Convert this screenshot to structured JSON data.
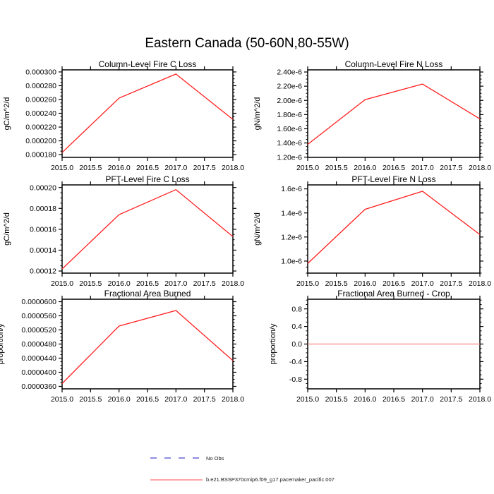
{
  "page_title": "Eastern Canada (50-60N,80-55W)",
  "colors": {
    "axis": "#000000",
    "series_red": "#ff1f1f",
    "flat_line_red": "#ff8585",
    "no_obs_purple": "#6a66d8",
    "legend_red": "#ff7070"
  },
  "legend": {
    "items": [
      {
        "label": "No Obs",
        "color": "#6a66d8",
        "style": "dashed"
      },
      {
        "label": "b.e21.BSSP370cmip6.f09_g17.pacemaker_pacific.007",
        "color": "#ff7070",
        "style": "solid"
      }
    ]
  },
  "chart_data": [
    {
      "type": "line",
      "title": "Column-Level Fire C Loss",
      "ylabel": "gC/m^2/d",
      "xlabel": "",
      "x": [
        2015.0,
        2016.0,
        2017.0,
        2018.0
      ],
      "values": [
        0.000183,
        0.000262,
        0.000297,
        0.000231
      ],
      "xlim": [
        2015.0,
        2018.0
      ],
      "xticks": [
        2015.0,
        2015.5,
        2016.0,
        2016.5,
        2017.0,
        2017.5,
        2018.0
      ],
      "xtick_labels": [
        "2015.0",
        "2015.5",
        "2016.0",
        "2016.5",
        "2017.0",
        "2017.5",
        "2018.0"
      ],
      "ylim": [
        0.000176,
        0.000303
      ],
      "yticks": [
        0.00018,
        0.0002,
        0.00022,
        0.00024,
        0.00026,
        0.00028,
        0.0003
      ],
      "ytick_labels": [
        "0.000180",
        "0.000200",
        "0.000220",
        "0.000240",
        "0.000260",
        "0.000280",
        "0.000300"
      ],
      "line_color": "#ff1f1f",
      "grid": false
    },
    {
      "type": "line",
      "title": "Column-Level Fire N Loss",
      "ylabel": "gN/m^2/d",
      "xlabel": "",
      "x": [
        2015.0,
        2016.0,
        2017.0,
        2018.0
      ],
      "values": [
        1.38e-06,
        2.01e-06,
        2.23e-06,
        1.74e-06
      ],
      "xlim": [
        2015.0,
        2018.0
      ],
      "xticks": [
        2015.0,
        2015.5,
        2016.0,
        2016.5,
        2017.0,
        2017.5,
        2018.0
      ],
      "xtick_labels": [
        "2015.0",
        "2015.5",
        "2016.0",
        "2016.5",
        "2017.0",
        "2017.5",
        "2018.0"
      ],
      "ylim": [
        1.197e-06,
        2.43e-06
      ],
      "yticks": [
        1.2e-06,
        1.4e-06,
        1.6e-06,
        1.8e-06,
        2e-06,
        2.2e-06,
        2.4e-06
      ],
      "ytick_labels": [
        "1.20e-6",
        "1.40e-6",
        "1.60e-6",
        "1.80e-6",
        "2.00e-6",
        "2.20e-6",
        "2.40e-6"
      ],
      "line_color": "#ff1f1f",
      "grid": false
    },
    {
      "type": "line",
      "title": "PFT-Level Fire C Loss",
      "ylabel": "gC/m^2/d",
      "xlabel": "",
      "x": [
        2015.0,
        2016.0,
        2017.0,
        2018.0
      ],
      "values": [
        0.000122,
        0.000174,
        0.000198,
        0.000153
      ],
      "xlim": [
        2015.0,
        2018.0
      ],
      "xticks": [
        2015.0,
        2015.5,
        2016.0,
        2016.5,
        2017.0,
        2017.5,
        2018.0
      ],
      "xtick_labels": [
        "2015.0",
        "2015.5",
        "2016.0",
        "2016.5",
        "2017.0",
        "2017.5",
        "2018.0"
      ],
      "ylim": [
        0.000118,
        0.0002025
      ],
      "yticks": [
        0.00012,
        0.00014,
        0.00016,
        0.00018,
        0.0002
      ],
      "ytick_labels": [
        "0.00012",
        "0.00014",
        "0.00016",
        "0.00018",
        "0.00020"
      ],
      "line_color": "#ff1f1f",
      "grid": false
    },
    {
      "type": "line",
      "title": "PFT-Level Fire N Loss",
      "ylabel": "gN/m^2/d",
      "xlabel": "",
      "x": [
        2015.0,
        2016.0,
        2017.0,
        2018.0
      ],
      "values": [
        9.8e-07,
        1.43e-06,
        1.58e-06,
        1.22e-06
      ],
      "xlim": [
        2015.0,
        2018.0
      ],
      "xticks": [
        2015.0,
        2015.5,
        2016.0,
        2016.5,
        2017.0,
        2017.5,
        2018.0
      ],
      "xtick_labels": [
        "2015.0",
        "2015.5",
        "2016.0",
        "2016.5",
        "2017.0",
        "2017.5",
        "2018.0"
      ],
      "ylim": [
        9e-07,
        1.633e-06
      ],
      "yticks": [
        1e-06,
        1.2e-06,
        1.4e-06,
        1.6e-06
      ],
      "ytick_labels": [
        "1.0e-6",
        "1.2e-6",
        "1.4e-6",
        "1.6e-6"
      ],
      "line_color": "#ff1f1f",
      "grid": false
    },
    {
      "type": "line",
      "title": "Fractional Area Burned",
      "ylabel": "proportion/y",
      "xlabel": "",
      "x": [
        2015.0,
        2016.0,
        2017.0,
        2018.0
      ],
      "values": [
        3.68e-05,
        5.31e-05,
        5.75e-05,
        4.33e-05
      ],
      "xlim": [
        2015.0,
        2018.0
      ],
      "xticks": [
        2015.0,
        2015.5,
        2016.0,
        2016.5,
        2017.0,
        2017.5,
        2018.0
      ],
      "xtick_labels": [
        "2015.0",
        "2015.5",
        "2016.0",
        "2016.5",
        "2017.0",
        "2017.5",
        "2018.0"
      ],
      "ylim": [
        3.53e-05,
        6.07e-05
      ],
      "yticks": [
        3.6e-05,
        4e-05,
        4.4e-05,
        4.8e-05,
        5.2e-05,
        5.6e-05,
        6e-05
      ],
      "ytick_labels": [
        "0.0000360",
        "0.0000400",
        "0.0000440",
        "0.0000480",
        "0.0000520",
        "0.0000560",
        "0.0000600"
      ],
      "line_color": "#ff1f1f",
      "grid": false
    },
    {
      "type": "line",
      "title": "Fractional Area Burned - Crop",
      "ylabel": "proportion/y",
      "xlabel": "",
      "x": [
        2015.0,
        2016.0,
        2017.0,
        2018.0
      ],
      "values": [
        0.0,
        0.0,
        0.0,
        0.0
      ],
      "xlim": [
        2015.0,
        2018.0
      ],
      "xticks": [
        2015.0,
        2015.5,
        2016.0,
        2016.5,
        2017.0,
        2017.5,
        2018.0
      ],
      "xtick_labels": [
        "2015.0",
        "2015.5",
        "2016.0",
        "2016.5",
        "2017.0",
        "2017.5",
        "2018.0"
      ],
      "ylim": [
        -1.02,
        1.02
      ],
      "yticks": [
        -0.8,
        -0.4,
        0.0,
        0.4,
        0.8
      ],
      "ytick_labels": [
        "-0.8",
        "-0.4",
        "0.0",
        "0.4",
        "0.8"
      ],
      "line_color": "#ff8585",
      "grid": false
    }
  ]
}
